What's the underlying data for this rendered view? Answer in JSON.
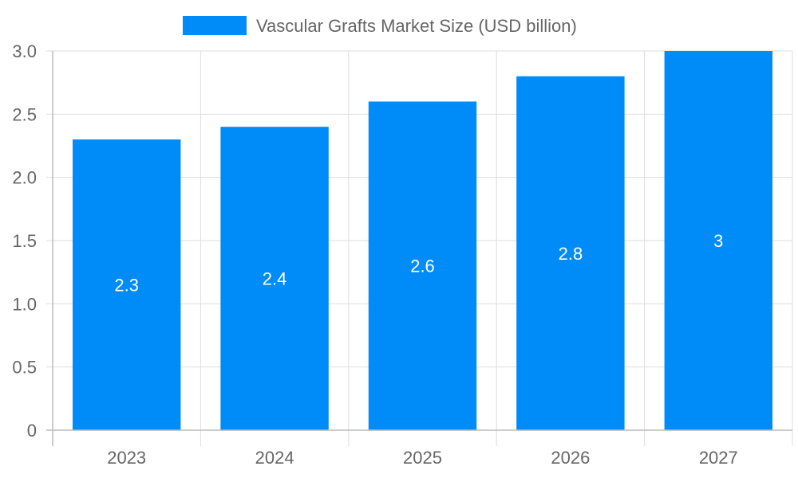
{
  "chart_data": {
    "type": "bar",
    "categories": [
      "2023",
      "2024",
      "2025",
      "2026",
      "2027"
    ],
    "series": [
      {
        "name": "Vascular Grafts Market  Size (USD billion)",
        "values": [
          2.3,
          2.4,
          2.6,
          2.8,
          3
        ],
        "data_labels": [
          "2.3",
          "2.4",
          "2.6",
          "2.8",
          "3"
        ],
        "color": "#008cf8"
      }
    ],
    "y_ticks": [
      "0",
      "0.5",
      "1.0",
      "1.5",
      "2.0",
      "2.5",
      "3.0"
    ],
    "ylim": [
      0,
      3
    ],
    "grid": true,
    "legend_position": "top-center"
  },
  "colors": {
    "grid": "#dddddd",
    "axis": "#bbbbbb"
  }
}
